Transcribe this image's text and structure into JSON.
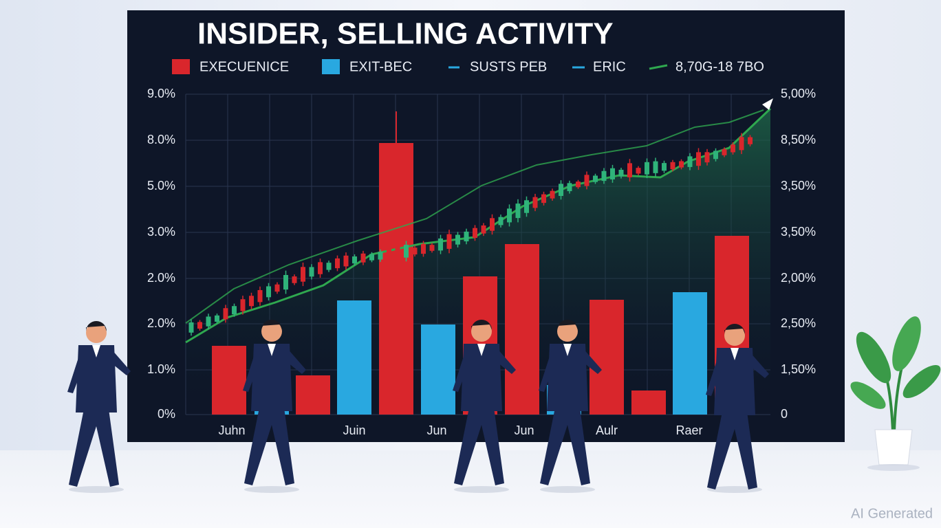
{
  "title": "INSIDER, SELLING ACTIVITY",
  "legend": [
    "EXECUENICE",
    "EXIT-BEC",
    "SUSTS PEB",
    "ERIC",
    "8,70G-18 7BO"
  ],
  "left_axis": [
    "9.0%",
    "8.0%",
    "5.0%",
    "3.0%",
    "2.0%",
    "2.0%",
    "1.0%",
    "0%"
  ],
  "right_axis": [
    "5,00%",
    "8,50%",
    "3,50%",
    "3,50%",
    "2,00%",
    "2,50%",
    "1,50%",
    "0"
  ],
  "x_labels": [
    "Juhn",
    "Juin",
    "Jun",
    "Jun",
    "Aulr",
    "Raer"
  ],
  "watermark": "AI Generated"
}
